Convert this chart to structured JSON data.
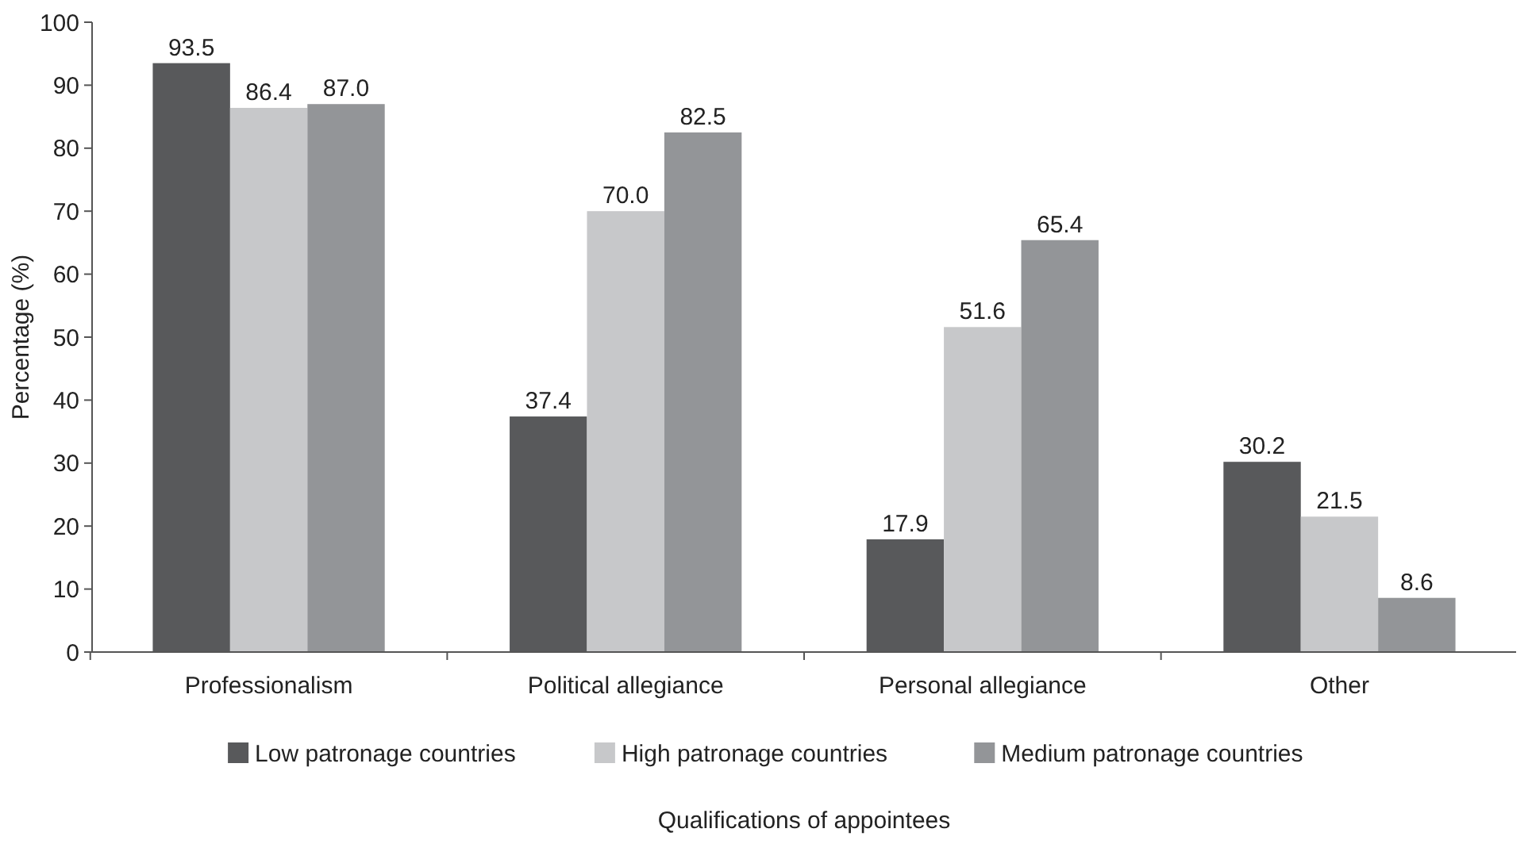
{
  "chart_data": {
    "type": "bar",
    "xlabel": "Qualifications of appointees",
    "ylabel": "Percentage (%)",
    "categories": [
      "Professionalism",
      "Political allegiance",
      "Personal allegiance",
      "Other"
    ],
    "series": [
      {
        "name": "Low patronage countries",
        "color": "#58595b",
        "values": [
          93.5,
          37.4,
          17.9,
          30.2
        ],
        "value_labels": [
          "93.5",
          "37.4",
          "17.9",
          "30.2"
        ]
      },
      {
        "name": "High patronage countries",
        "color": "#c7c8ca",
        "values": [
          86.4,
          70.0,
          51.6,
          21.5
        ],
        "value_labels": [
          "86.4",
          "70.0",
          "51.6",
          "21.5"
        ]
      },
      {
        "name": "Medium patronage countries",
        "color": "#939598",
        "values": [
          87.0,
          82.5,
          65.4,
          8.6
        ],
        "value_labels": [
          "87.0",
          "82.5",
          "65.4",
          "8.6"
        ]
      }
    ],
    "ylim": [
      0,
      100
    ],
    "yticks": [
      0,
      10,
      20,
      30,
      40,
      50,
      60,
      70,
      80,
      90,
      100
    ],
    "legend": "bottom",
    "grid": false
  }
}
